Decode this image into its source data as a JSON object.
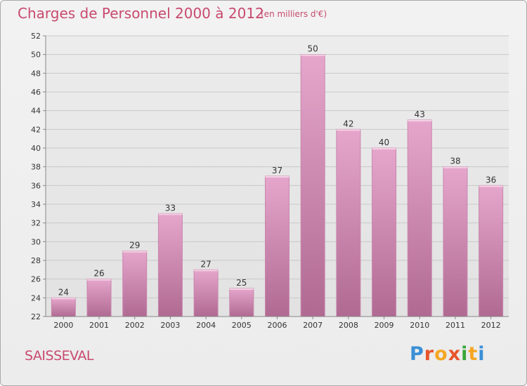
{
  "header": {
    "title": "Charges de Personnel 2000 à 2012",
    "subtitle": "(en milliers d'€)"
  },
  "footer": {
    "commune": "SAISSEVAL",
    "logo_text": "Proxiti",
    "logo_colors": [
      "#3a8fd6",
      "#e8542c",
      "#f5a623",
      "#e8542c",
      "#3aa63a",
      "#f5a623",
      "#3a8fd6"
    ]
  },
  "chart_data": {
    "type": "bar",
    "title": "Charges de Personnel 2000 à 2012",
    "subtitle": "(en milliers d'€)",
    "xlabel": "",
    "ylabel": "",
    "categories": [
      "2000",
      "2001",
      "2002",
      "2003",
      "2004",
      "2005",
      "2006",
      "2007",
      "2008",
      "2009",
      "2010",
      "2011",
      "2012"
    ],
    "values": [
      24,
      26,
      29,
      33,
      27,
      25,
      37,
      50,
      42,
      40,
      43,
      38,
      36
    ],
    "ylim": [
      22,
      52
    ],
    "yticks": [
      22,
      24,
      26,
      28,
      30,
      32,
      34,
      36,
      38,
      40,
      42,
      44,
      46,
      48,
      50,
      52
    ],
    "grid": true,
    "bar_color_top": "#e6a6cc",
    "bar_color_bottom": "#b06a92",
    "axis_text_color": "#333333"
  }
}
